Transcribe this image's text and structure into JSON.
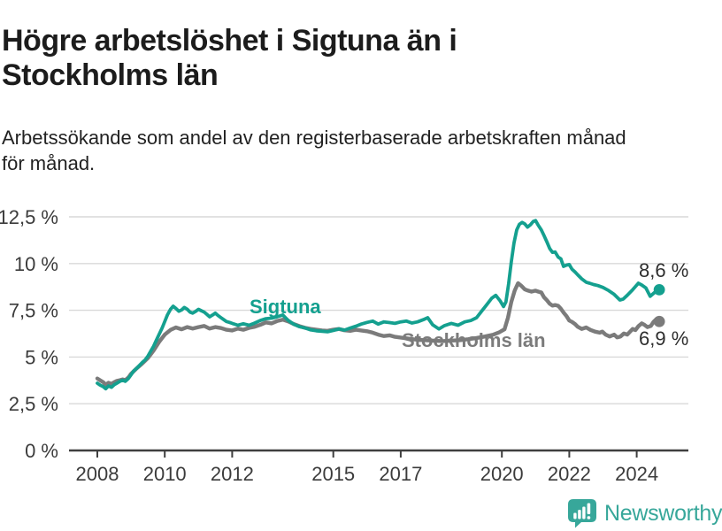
{
  "title": "Högre arbetslöshet i Sigtuna än i Stockholms län",
  "subtitle": "Arbetssökande som andel av den registerbaserade arbetskraften månad för månad.",
  "footer": {
    "brand": "Newsworthy",
    "logo_icon": "bar-chart-speech-bubble-icon"
  },
  "colors": {
    "sigtuna": "#14a08f",
    "stockholm": "#7b7b7b",
    "grid": "#d9d9d9",
    "axis": "#3f3f3f",
    "tick_text": "#3b3b3b",
    "title_text": "#1c1c1c",
    "brand_teal": "#37a79a"
  },
  "chart_data": {
    "type": "line",
    "title": "Högre arbetslöshet i Sigtuna än i Stockholms län",
    "subtitle": "Arbetssökande som andel av den registerbaserade arbetskraften månad för månad.",
    "grid": true,
    "legend_position": "inline-labels",
    "x_axis": {
      "unit": "year",
      "range": [
        2007.15,
        2025.55
      ],
      "ticks": [
        2008,
        2010,
        2012,
        2015,
        2017,
        2020,
        2022,
        2024
      ],
      "tick_labels": [
        "2008",
        "2010",
        "2012",
        "2015",
        "2017",
        "2020",
        "2022",
        "2024"
      ]
    },
    "y_axis": {
      "unit": "percent",
      "range": [
        0,
        13.6
      ],
      "ticks": [
        0,
        2.5,
        5,
        7.5,
        10,
        12.5
      ],
      "tick_labels": [
        "0 %",
        "2,5 %",
        "5 %",
        "7,5 %",
        "10 %",
        "12,5 %"
      ]
    },
    "series": [
      {
        "name": "Sigtuna",
        "color": "#14a08f",
        "end_value": 8.6,
        "end_label": "8,6 %",
        "points": [
          [
            2008.0,
            3.6
          ],
          [
            2008.08,
            3.5
          ],
          [
            2008.17,
            3.42
          ],
          [
            2008.25,
            3.3
          ],
          [
            2008.33,
            3.45
          ],
          [
            2008.42,
            3.38
          ],
          [
            2008.5,
            3.52
          ],
          [
            2008.58,
            3.6
          ],
          [
            2008.67,
            3.7
          ],
          [
            2008.75,
            3.76
          ],
          [
            2008.83,
            3.7
          ],
          [
            2008.92,
            3.85
          ],
          [
            2009.0,
            4.05
          ],
          [
            2009.08,
            4.25
          ],
          [
            2009.17,
            4.4
          ],
          [
            2009.25,
            4.55
          ],
          [
            2009.33,
            4.7
          ],
          [
            2009.42,
            4.85
          ],
          [
            2009.5,
            5.05
          ],
          [
            2009.58,
            5.3
          ],
          [
            2009.67,
            5.58
          ],
          [
            2009.75,
            5.9
          ],
          [
            2009.83,
            6.2
          ],
          [
            2009.92,
            6.55
          ],
          [
            2010.0,
            6.9
          ],
          [
            2010.08,
            7.25
          ],
          [
            2010.17,
            7.55
          ],
          [
            2010.25,
            7.72
          ],
          [
            2010.33,
            7.6
          ],
          [
            2010.42,
            7.45
          ],
          [
            2010.5,
            7.52
          ],
          [
            2010.58,
            7.65
          ],
          [
            2010.67,
            7.55
          ],
          [
            2010.75,
            7.4
          ],
          [
            2010.83,
            7.35
          ],
          [
            2010.92,
            7.45
          ],
          [
            2011.0,
            7.55
          ],
          [
            2011.08,
            7.48
          ],
          [
            2011.17,
            7.4
          ],
          [
            2011.25,
            7.28
          ],
          [
            2011.33,
            7.15
          ],
          [
            2011.42,
            7.25
          ],
          [
            2011.5,
            7.35
          ],
          [
            2011.58,
            7.22
          ],
          [
            2011.67,
            7.1
          ],
          [
            2011.75,
            7.0
          ],
          [
            2011.83,
            6.9
          ],
          [
            2011.92,
            6.85
          ],
          [
            2012.0,
            6.8
          ],
          [
            2012.17,
            6.7
          ],
          [
            2012.33,
            6.78
          ],
          [
            2012.5,
            6.7
          ],
          [
            2012.67,
            6.82
          ],
          [
            2012.83,
            6.95
          ],
          [
            2013.0,
            7.05
          ],
          [
            2013.17,
            7.08
          ],
          [
            2013.33,
            7.15
          ],
          [
            2013.5,
            7.25
          ],
          [
            2013.58,
            7.1
          ],
          [
            2013.67,
            6.95
          ],
          [
            2013.83,
            6.75
          ],
          [
            2014.0,
            6.62
          ],
          [
            2014.17,
            6.55
          ],
          [
            2014.33,
            6.45
          ],
          [
            2014.5,
            6.4
          ],
          [
            2014.67,
            6.38
          ],
          [
            2014.83,
            6.35
          ],
          [
            2015.0,
            6.42
          ],
          [
            2015.17,
            6.5
          ],
          [
            2015.33,
            6.44
          ],
          [
            2015.5,
            6.55
          ],
          [
            2015.67,
            6.65
          ],
          [
            2015.83,
            6.76
          ],
          [
            2016.0,
            6.85
          ],
          [
            2016.17,
            6.92
          ],
          [
            2016.33,
            6.76
          ],
          [
            2016.5,
            6.88
          ],
          [
            2016.67,
            6.84
          ],
          [
            2016.83,
            6.8
          ],
          [
            2017.0,
            6.88
          ],
          [
            2017.17,
            6.92
          ],
          [
            2017.33,
            6.82
          ],
          [
            2017.5,
            6.88
          ],
          [
            2017.67,
            7.0
          ],
          [
            2017.8,
            7.1
          ],
          [
            2017.95,
            6.72
          ],
          [
            2018.13,
            6.5
          ],
          [
            2018.3,
            6.68
          ],
          [
            2018.5,
            6.8
          ],
          [
            2018.7,
            6.7
          ],
          [
            2018.9,
            6.88
          ],
          [
            2019.08,
            6.95
          ],
          [
            2019.25,
            7.1
          ],
          [
            2019.4,
            7.45
          ],
          [
            2019.55,
            7.8
          ],
          [
            2019.7,
            8.15
          ],
          [
            2019.82,
            8.3
          ],
          [
            2019.95,
            8.0
          ],
          [
            2020.05,
            7.7
          ],
          [
            2020.12,
            7.95
          ],
          [
            2020.2,
            8.9
          ],
          [
            2020.28,
            10.1
          ],
          [
            2020.36,
            11.1
          ],
          [
            2020.44,
            11.8
          ],
          [
            2020.52,
            12.1
          ],
          [
            2020.6,
            12.2
          ],
          [
            2020.68,
            12.12
          ],
          [
            2020.76,
            11.95
          ],
          [
            2020.85,
            12.08
          ],
          [
            2020.93,
            12.25
          ],
          [
            2021.0,
            12.3
          ],
          [
            2021.08,
            12.05
          ],
          [
            2021.17,
            11.8
          ],
          [
            2021.25,
            11.5
          ],
          [
            2021.33,
            11.18
          ],
          [
            2021.42,
            10.8
          ],
          [
            2021.5,
            10.6
          ],
          [
            2021.58,
            10.62
          ],
          [
            2021.67,
            10.35
          ],
          [
            2021.75,
            10.25
          ],
          [
            2021.83,
            9.85
          ],
          [
            2021.92,
            9.92
          ],
          [
            2022.0,
            9.95
          ],
          [
            2022.08,
            9.7
          ],
          [
            2022.17,
            9.55
          ],
          [
            2022.25,
            9.4
          ],
          [
            2022.37,
            9.18
          ],
          [
            2022.5,
            9.0
          ],
          [
            2022.6,
            8.95
          ],
          [
            2022.72,
            8.88
          ],
          [
            2022.85,
            8.82
          ],
          [
            2023.0,
            8.72
          ],
          [
            2023.17,
            8.55
          ],
          [
            2023.33,
            8.35
          ],
          [
            2023.5,
            8.05
          ],
          [
            2023.6,
            8.1
          ],
          [
            2023.72,
            8.3
          ],
          [
            2023.88,
            8.6
          ],
          [
            2024.05,
            8.95
          ],
          [
            2024.15,
            8.85
          ],
          [
            2024.27,
            8.7
          ],
          [
            2024.4,
            8.25
          ],
          [
            2024.53,
            8.45
          ],
          [
            2024.67,
            8.6
          ]
        ]
      },
      {
        "name": "Stockholms län",
        "color": "#7b7b7b",
        "end_value": 6.9,
        "end_label": "6,9 %",
        "points": [
          [
            2008.0,
            3.85
          ],
          [
            2008.08,
            3.76
          ],
          [
            2008.17,
            3.66
          ],
          [
            2008.25,
            3.52
          ],
          [
            2008.33,
            3.62
          ],
          [
            2008.42,
            3.56
          ],
          [
            2008.5,
            3.65
          ],
          [
            2008.58,
            3.72
          ],
          [
            2008.67,
            3.76
          ],
          [
            2008.75,
            3.8
          ],
          [
            2008.83,
            3.76
          ],
          [
            2008.92,
            3.9
          ],
          [
            2009.0,
            4.1
          ],
          [
            2009.17,
            4.4
          ],
          [
            2009.33,
            4.65
          ],
          [
            2009.5,
            4.95
          ],
          [
            2009.67,
            5.35
          ],
          [
            2009.83,
            5.8
          ],
          [
            2010.0,
            6.2
          ],
          [
            2010.17,
            6.45
          ],
          [
            2010.33,
            6.58
          ],
          [
            2010.5,
            6.48
          ],
          [
            2010.67,
            6.6
          ],
          [
            2010.83,
            6.52
          ],
          [
            2011.0,
            6.6
          ],
          [
            2011.17,
            6.66
          ],
          [
            2011.33,
            6.52
          ],
          [
            2011.5,
            6.6
          ],
          [
            2011.67,
            6.55
          ],
          [
            2011.83,
            6.46
          ],
          [
            2012.0,
            6.42
          ],
          [
            2012.17,
            6.52
          ],
          [
            2012.33,
            6.46
          ],
          [
            2012.5,
            6.56
          ],
          [
            2012.67,
            6.62
          ],
          [
            2012.83,
            6.72
          ],
          [
            2013.0,
            6.85
          ],
          [
            2013.17,
            6.8
          ],
          [
            2013.33,
            6.92
          ],
          [
            2013.5,
            7.0
          ],
          [
            2013.67,
            6.9
          ],
          [
            2013.83,
            6.76
          ],
          [
            2014.0,
            6.65
          ],
          [
            2014.17,
            6.56
          ],
          [
            2014.33,
            6.5
          ],
          [
            2014.5,
            6.46
          ],
          [
            2014.67,
            6.42
          ],
          [
            2014.83,
            6.4
          ],
          [
            2015.0,
            6.46
          ],
          [
            2015.17,
            6.5
          ],
          [
            2015.33,
            6.43
          ],
          [
            2015.5,
            6.4
          ],
          [
            2015.67,
            6.46
          ],
          [
            2015.83,
            6.42
          ],
          [
            2016.0,
            6.38
          ],
          [
            2016.17,
            6.3
          ],
          [
            2016.33,
            6.2
          ],
          [
            2016.5,
            6.12
          ],
          [
            2016.67,
            6.16
          ],
          [
            2016.83,
            6.08
          ],
          [
            2017.0,
            6.04
          ],
          [
            2017.25,
            5.98
          ],
          [
            2017.5,
            5.92
          ],
          [
            2017.75,
            5.9
          ],
          [
            2018.0,
            5.87
          ],
          [
            2018.25,
            5.85
          ],
          [
            2018.5,
            5.88
          ],
          [
            2018.75,
            5.9
          ],
          [
            2019.0,
            5.95
          ],
          [
            2019.25,
            6.02
          ],
          [
            2019.5,
            6.1
          ],
          [
            2019.75,
            6.2
          ],
          [
            2019.92,
            6.32
          ],
          [
            2020.08,
            6.48
          ],
          [
            2020.18,
            7.1
          ],
          [
            2020.28,
            7.95
          ],
          [
            2020.38,
            8.55
          ],
          [
            2020.48,
            8.95
          ],
          [
            2020.58,
            8.8
          ],
          [
            2020.68,
            8.62
          ],
          [
            2020.78,
            8.55
          ],
          [
            2020.88,
            8.5
          ],
          [
            2021.0,
            8.55
          ],
          [
            2021.08,
            8.5
          ],
          [
            2021.17,
            8.45
          ],
          [
            2021.25,
            8.2
          ],
          [
            2021.33,
            8.05
          ],
          [
            2021.42,
            7.85
          ],
          [
            2021.5,
            7.75
          ],
          [
            2021.58,
            7.78
          ],
          [
            2021.67,
            7.74
          ],
          [
            2021.75,
            7.58
          ],
          [
            2021.83,
            7.38
          ],
          [
            2021.92,
            7.18
          ],
          [
            2022.0,
            6.95
          ],
          [
            2022.08,
            6.88
          ],
          [
            2022.17,
            6.76
          ],
          [
            2022.25,
            6.62
          ],
          [
            2022.37,
            6.5
          ],
          [
            2022.5,
            6.58
          ],
          [
            2022.63,
            6.45
          ],
          [
            2022.76,
            6.36
          ],
          [
            2022.9,
            6.3
          ],
          [
            2022.98,
            6.36
          ],
          [
            2023.08,
            6.2
          ],
          [
            2023.2,
            6.1
          ],
          [
            2023.33,
            6.2
          ],
          [
            2023.42,
            6.05
          ],
          [
            2023.52,
            6.1
          ],
          [
            2023.62,
            6.26
          ],
          [
            2023.72,
            6.2
          ],
          [
            2023.8,
            6.35
          ],
          [
            2023.88,
            6.5
          ],
          [
            2023.96,
            6.44
          ],
          [
            2024.05,
            6.65
          ],
          [
            2024.15,
            6.8
          ],
          [
            2024.23,
            6.72
          ],
          [
            2024.32,
            6.6
          ],
          [
            2024.42,
            6.66
          ],
          [
            2024.5,
            6.88
          ],
          [
            2024.58,
            7.02
          ],
          [
            2024.67,
            6.9
          ]
        ]
      }
    ]
  }
}
